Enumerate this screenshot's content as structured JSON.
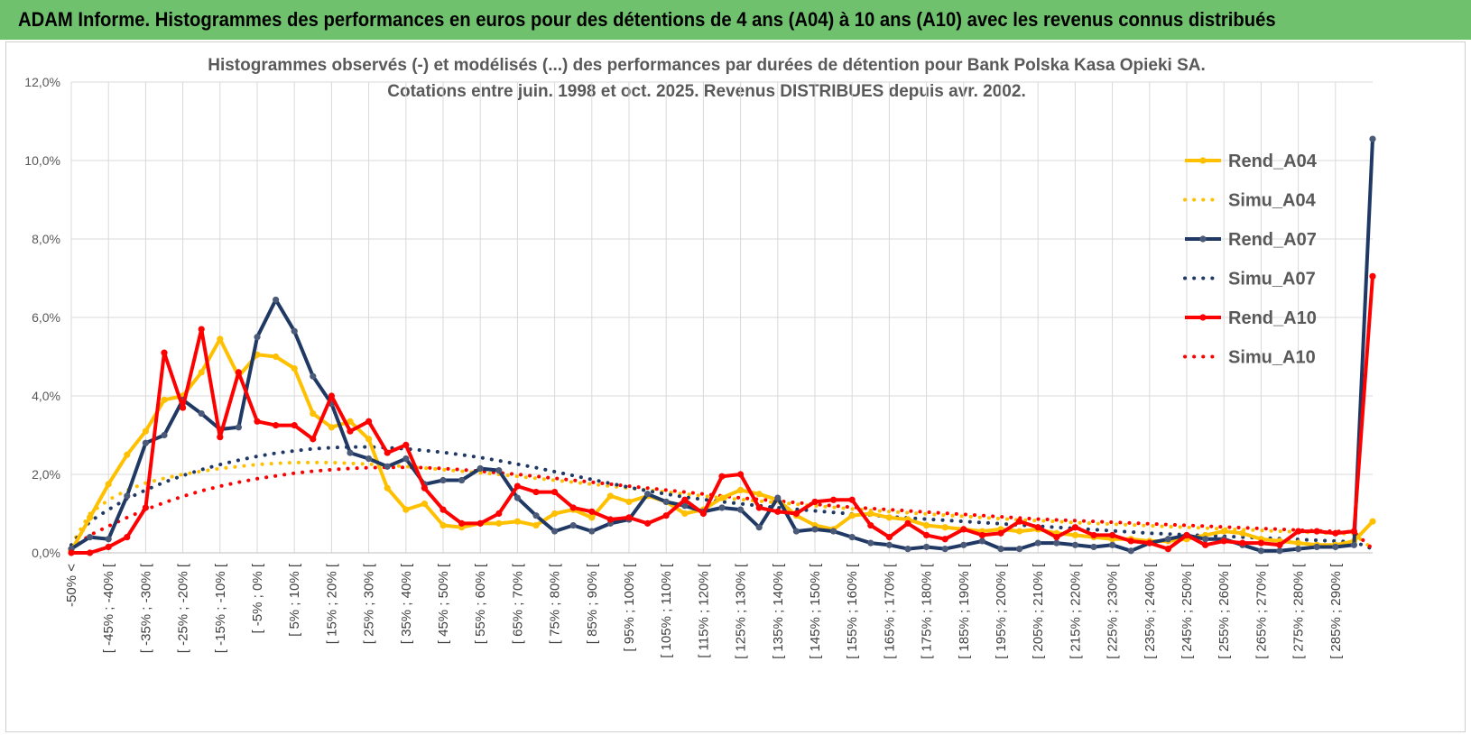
{
  "banner": {
    "title": "ADAM Informe. Histogrammes des performances en euros pour des détentions de 4 ans (A04) à 10 ans (A10) avec les revenus connus distribués",
    "background": "#6fc16d"
  },
  "chart_data": {
    "type": "line",
    "title_line1": "Histogrammes observés (-) et modélisés (...) des performances par durées de détention pour Bank Polska Kasa Opieki SA.",
    "title_line2": "Cotations entre juin. 1998 et oct. 2025. Revenus DISTRIBUES depuis avr. 2002.",
    "ylim": [
      0,
      12
    ],
    "yticks": [
      0,
      2,
      4,
      6,
      8,
      10,
      12
    ],
    "ytick_labels": [
      "0,0%",
      "2,0%",
      "4,0%",
      "6,0%",
      "8,0%",
      "10,0%",
      "12,0%"
    ],
    "grid": true,
    "legend_position": "top-right",
    "x_labels": [
      "-50% <",
      "[ -45% ; -40% [",
      "[ -35% ; -30% [",
      "[ -25% ; -20% [",
      "[ -15% ; -10% [",
      "[ -5% ; 0% [",
      "[ 5% ; 10% [",
      "[ 15% ; 20% [",
      "[ 25% ; 30% [",
      "[ 35% ; 40% [",
      "[ 45% ; 50% [",
      "[ 55% ; 60% [",
      "[ 65% ; 70% [",
      "[ 75% ; 80% [",
      "[ 85% ; 90% [",
      "[ 95% ; 100% [",
      "[ 105% ; 110% [",
      "[ 115% ; 120% [",
      "[ 125% ; 130% [",
      "[ 135% ; 140% [",
      "[ 145% ; 150% [",
      "[ 155% ; 160% [",
      "[ 165% ; 170% [",
      "[ 175% ; 180% [",
      "[ 185% ; 190% [",
      "[ 195% ; 200% [",
      "[ 205% ; 210% [",
      "[ 215% ; 220% [",
      "[ 225% ; 230% [",
      "[ 235% ; 240% [",
      "[ 245% ; 250% [",
      "[ 255% ; 260% [",
      "[ 265% ; 270% [",
      "[ 275% ; 280% [",
      "[ 285% ; 290% ["
    ],
    "x_label_bins": [
      0,
      2,
      4,
      6,
      8,
      10,
      12,
      14,
      16,
      18,
      20,
      22,
      24,
      26,
      28,
      30,
      32,
      34,
      36,
      38,
      40,
      42,
      44,
      46,
      48,
      50,
      52,
      54,
      56,
      58,
      60,
      62,
      64,
      66,
      68
    ],
    "bin_count": 71,
    "series": [
      {
        "name": "Rend_A04",
        "style": "solid",
        "markers": true,
        "color": "#ffc000",
        "values": [
          0.05,
          0.9,
          1.75,
          2.5,
          3.1,
          3.9,
          4.0,
          4.6,
          5.45,
          4.5,
          5.05,
          5.0,
          4.7,
          3.55,
          3.2,
          3.35,
          2.9,
          1.65,
          1.1,
          1.25,
          0.7,
          0.65,
          0.75,
          0.75,
          0.8,
          0.7,
          1.0,
          1.1,
          0.9,
          1.45,
          1.3,
          1.45,
          1.3,
          1.0,
          1.1,
          1.4,
          1.6,
          1.5,
          1.35,
          0.95,
          0.7,
          0.6,
          0.95,
          1.0,
          0.9,
          0.85,
          0.7,
          0.65,
          0.6,
          0.55,
          0.6,
          0.55,
          0.6,
          0.5,
          0.45,
          0.4,
          0.35,
          0.35,
          0.3,
          0.3,
          0.35,
          0.45,
          0.55,
          0.5,
          0.35,
          0.3,
          0.25,
          0.2,
          0.2,
          0.3,
          0.8
        ]
      },
      {
        "name": "Simu_A04",
        "style": "dotted",
        "markers": false,
        "color": "#ffc000",
        "values": [
          0.2,
          1.0,
          1.35,
          1.6,
          1.78,
          1.9,
          2.0,
          2.08,
          2.15,
          2.2,
          2.25,
          2.28,
          2.3,
          2.3,
          2.3,
          2.28,
          2.26,
          2.23,
          2.2,
          2.16,
          2.12,
          2.08,
          2.04,
          2.0,
          1.95,
          1.9,
          1.85,
          1.8,
          1.75,
          1.7,
          1.65,
          1.6,
          1.55,
          1.5,
          1.45,
          1.4,
          1.36,
          1.32,
          1.28,
          1.24,
          1.2,
          1.16,
          1.12,
          1.08,
          1.05,
          1.02,
          0.99,
          0.96,
          0.93,
          0.9,
          0.87,
          0.84,
          0.82,
          0.8,
          0.77,
          0.75,
          0.73,
          0.71,
          0.69,
          0.67,
          0.65,
          0.63,
          0.61,
          0.59,
          0.57,
          0.55,
          0.53,
          0.51,
          0.5,
          0.48,
          0.1
        ]
      },
      {
        "name": "Rend_A07",
        "style": "solid",
        "markers": true,
        "color": "#1f3864",
        "values": [
          0.1,
          0.4,
          0.35,
          1.45,
          2.8,
          3.0,
          3.9,
          3.55,
          3.15,
          3.2,
          5.5,
          6.45,
          5.65,
          4.5,
          3.8,
          2.55,
          2.4,
          2.2,
          2.4,
          1.75,
          1.85,
          1.85,
          2.15,
          2.1,
          1.4,
          0.95,
          0.55,
          0.7,
          0.55,
          0.75,
          0.85,
          1.5,
          1.3,
          1.2,
          1.05,
          1.15,
          1.1,
          0.65,
          1.4,
          0.55,
          0.6,
          0.55,
          0.4,
          0.25,
          0.2,
          0.1,
          0.15,
          0.1,
          0.2,
          0.3,
          0.1,
          0.1,
          0.25,
          0.25,
          0.2,
          0.15,
          0.2,
          0.05,
          0.25,
          0.35,
          0.45,
          0.35,
          0.35,
          0.2,
          0.05,
          0.05,
          0.1,
          0.15,
          0.15,
          0.2,
          10.55
        ]
      },
      {
        "name": "Simu_A07",
        "style": "dotted",
        "markers": false,
        "color": "#1f3864",
        "values": [
          0.2,
          0.8,
          1.1,
          1.38,
          1.6,
          1.8,
          1.97,
          2.12,
          2.25,
          2.36,
          2.46,
          2.54,
          2.6,
          2.65,
          2.68,
          2.7,
          2.7,
          2.68,
          2.65,
          2.61,
          2.56,
          2.5,
          2.43,
          2.35,
          2.26,
          2.17,
          2.07,
          1.97,
          1.87,
          1.77,
          1.67,
          1.58,
          1.5,
          1.42,
          1.36,
          1.3,
          1.25,
          1.2,
          1.15,
          1.11,
          1.07,
          1.03,
          0.99,
          0.96,
          0.92,
          0.89,
          0.86,
          0.83,
          0.8,
          0.77,
          0.74,
          0.71,
          0.68,
          0.65,
          0.62,
          0.59,
          0.56,
          0.53,
          0.5,
          0.48,
          0.46,
          0.44,
          0.42,
          0.4,
          0.38,
          0.36,
          0.34,
          0.32,
          0.3,
          0.28,
          0.1
        ]
      },
      {
        "name": "Rend_A10",
        "style": "solid",
        "markers": true,
        "color": "#ff0000",
        "values": [
          0.0,
          0.0,
          0.15,
          0.4,
          1.15,
          5.1,
          3.7,
          5.7,
          2.95,
          4.6,
          3.35,
          3.25,
          3.25,
          2.9,
          4.0,
          3.1,
          3.35,
          2.55,
          2.75,
          1.65,
          1.1,
          0.75,
          0.75,
          1.0,
          1.7,
          1.55,
          1.55,
          1.15,
          1.05,
          0.85,
          0.9,
          0.75,
          0.95,
          1.35,
          1.0,
          1.95,
          2.0,
          1.15,
          1.05,
          1.0,
          1.3,
          1.35,
          1.35,
          0.7,
          0.4,
          0.75,
          0.45,
          0.35,
          0.6,
          0.45,
          0.5,
          0.8,
          0.65,
          0.4,
          0.65,
          0.45,
          0.45,
          0.3,
          0.25,
          0.1,
          0.45,
          0.2,
          0.3,
          0.25,
          0.25,
          0.2,
          0.55,
          0.55,
          0.5,
          0.55,
          7.05
        ]
      },
      {
        "name": "Simu_A10",
        "style": "dotted",
        "markers": false,
        "color": "#ff0000",
        "values": [
          0.1,
          0.45,
          0.68,
          0.9,
          1.1,
          1.28,
          1.44,
          1.58,
          1.7,
          1.8,
          1.89,
          1.96,
          2.03,
          2.08,
          2.12,
          2.15,
          2.17,
          2.18,
          2.18,
          2.17,
          2.15,
          2.12,
          2.08,
          2.04,
          2.0,
          1.95,
          1.9,
          1.85,
          1.8,
          1.75,
          1.7,
          1.65,
          1.6,
          1.55,
          1.5,
          1.45,
          1.4,
          1.36,
          1.32,
          1.28,
          1.24,
          1.2,
          1.16,
          1.13,
          1.1,
          1.07,
          1.04,
          1.01,
          0.98,
          0.95,
          0.92,
          0.89,
          0.86,
          0.84,
          0.82,
          0.8,
          0.78,
          0.76,
          0.74,
          0.72,
          0.7,
          0.68,
          0.66,
          0.64,
          0.62,
          0.6,
          0.58,
          0.56,
          0.55,
          0.53,
          0.1
        ]
      }
    ]
  }
}
